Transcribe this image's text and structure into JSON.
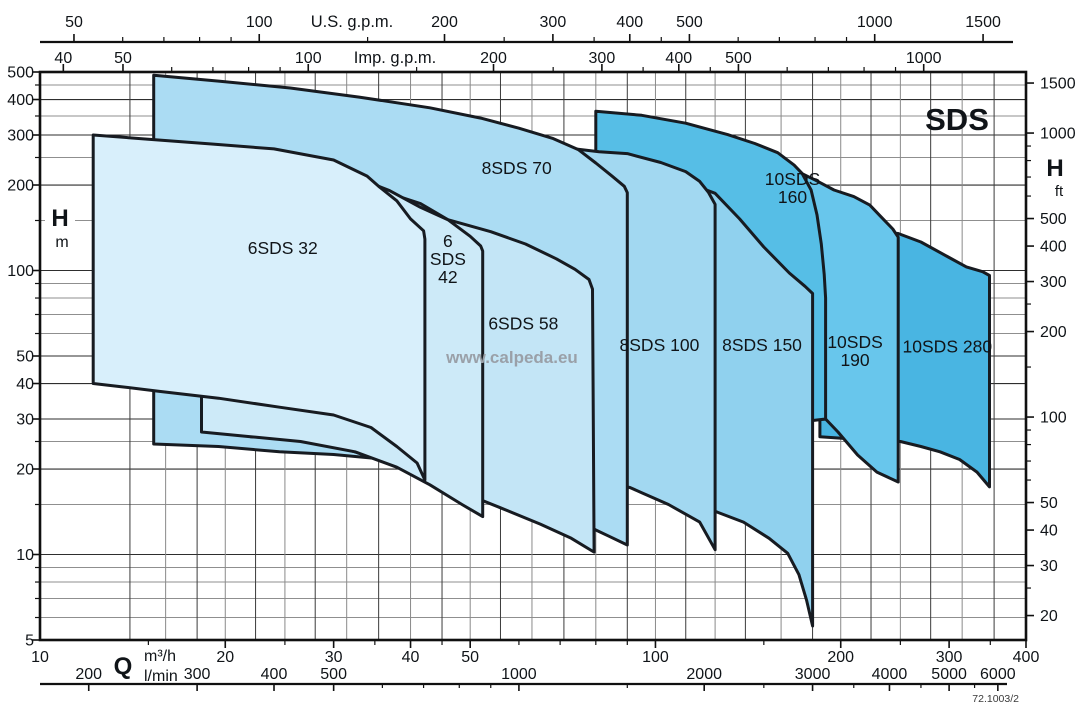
{
  "page": {
    "background": "#ffffff"
  },
  "chart_data": {
    "type": "area",
    "title": "SDS",
    "drawing_number": "72.1003/2",
    "watermark": "www.calpeda.eu",
    "scale": "log-log",
    "xlim_m3h": [
      10,
      400
    ],
    "ylim_m": [
      5,
      500
    ],
    "axes": {
      "top_us_gpm": {
        "title": "U.S. g.p.m.",
        "factor_to_m3h": 0.2271,
        "labels": [
          50,
          100,
          200,
          300,
          400,
          500,
          1000,
          1500
        ],
        "minor": [
          60,
          70,
          80,
          90,
          150,
          250,
          350,
          450,
          600,
          700,
          800,
          900
        ]
      },
      "top_imp_gpm": {
        "title": "Imp. g.p.m.",
        "factor_to_m3h": 0.2728,
        "labels": [
          40,
          50,
          100,
          200,
          300,
          400,
          500,
          1000
        ],
        "minor": [
          60,
          70,
          80,
          90,
          150,
          250,
          350,
          450,
          600,
          700,
          800,
          900
        ]
      },
      "bottom_m3h": {
        "title": "m³/h",
        "factor_to_m3h": 1,
        "labels": [
          10,
          20,
          30,
          40,
          50,
          100,
          200,
          300,
          400
        ],
        "minor": [
          15,
          25,
          35,
          45,
          60,
          70,
          80,
          90,
          150,
          250,
          350
        ]
      },
      "bottom_lmin": {
        "title": "l/min",
        "factor_to_m3h": 0.06,
        "labels": [
          200,
          300,
          400,
          500,
          1000,
          2000,
          3000,
          4000,
          5000,
          6000
        ],
        "minor": [
          600,
          700,
          800,
          900,
          1500,
          2500,
          3500,
          4500,
          5500
        ]
      },
      "left_head_m": {
        "title_main": "H",
        "title_unit": "m",
        "labels": [
          5,
          10,
          20,
          30,
          40,
          50,
          100,
          200,
          300,
          400,
          500
        ],
        "minor": [
          6,
          7,
          8,
          9,
          15,
          25,
          60,
          70,
          80,
          90,
          150,
          250,
          350,
          450
        ]
      },
      "right_head_ft": {
        "title_main": "H",
        "title_unit": "ft",
        "factor_to_m": 0.3048,
        "labels": [
          20,
          30,
          40,
          50,
          100,
          200,
          300,
          400,
          500,
          1000,
          1500
        ],
        "minor": [
          25,
          60,
          70,
          80,
          90,
          150,
          250,
          600,
          700,
          800,
          900
        ]
      },
      "flow_symbol": "Q"
    },
    "grid": {
      "h_major": [
        10,
        20,
        30,
        40,
        50,
        100,
        200,
        300,
        400
      ],
      "h_minor": [
        6,
        7,
        8,
        9,
        15,
        25,
        60,
        70,
        80,
        90,
        150,
        250,
        350,
        450
      ],
      "v_values": [
        14,
        16,
        18,
        20,
        22.4,
        25,
        28,
        31.5,
        35.5,
        40,
        45,
        50,
        56,
        63,
        71,
        80,
        90,
        100,
        112,
        125,
        140,
        160,
        180,
        200,
        224,
        250,
        280,
        315,
        355
      ]
    },
    "regions": [
      {
        "model": "10SDS 280",
        "label_lines": [
          "10SDS 280"
        ],
        "label_pos": [
          298,
          54
        ],
        "fill": "#49b5e2",
        "points": [
          [
            185,
            26
          ],
          [
            185,
            140
          ],
          [
            215,
            138
          ],
          [
            248,
            135
          ],
          [
            270,
            126
          ],
          [
            298,
            112
          ],
          [
            320,
            103
          ],
          [
            340,
            99
          ],
          [
            349,
            96
          ],
          [
            349,
            17.3
          ],
          [
            333,
            19.5
          ],
          [
            312,
            21.6
          ],
          [
            290,
            23
          ],
          [
            270,
            24
          ],
          [
            250,
            25
          ],
          [
            215,
            25.4
          ]
        ]
      },
      {
        "model": "10SDS 190",
        "label_lines": [
          "10SDS",
          "190"
        ],
        "label_pos": [
          211,
          52
        ],
        "fill": "#68c6ec",
        "points": [
          [
            137,
            29
          ],
          [
            137,
            266
          ],
          [
            160,
            241
          ],
          [
            171,
            222
          ],
          [
            182,
            208
          ],
          [
            195,
            192
          ],
          [
            210,
            182
          ],
          [
            223,
            170
          ],
          [
            233,
            154
          ],
          [
            243,
            140
          ],
          [
            248,
            131
          ],
          [
            248,
            18
          ],
          [
            229,
            19.5
          ],
          [
            213,
            22.4
          ],
          [
            198,
            27
          ],
          [
            189,
            30
          ],
          [
            165,
            29.5
          ]
        ]
      },
      {
        "model": "10SDS 160",
        "label_lines": [
          "10SDS",
          "160"
        ],
        "label_pos": [
          167,
          195
        ],
        "fill": "#56bee6",
        "points": [
          [
            80,
            27.5
          ],
          [
            80,
            364
          ],
          [
            95,
            352
          ],
          [
            112,
            330
          ],
          [
            131,
            301
          ],
          [
            145,
            280
          ],
          [
            158,
            260
          ],
          [
            168,
            235
          ],
          [
            173,
            220
          ],
          [
            179,
            192
          ],
          [
            183,
            157
          ],
          [
            186,
            124
          ],
          [
            188,
            97
          ],
          [
            189,
            80
          ],
          [
            189,
            30
          ],
          [
            165,
            29
          ],
          [
            137,
            28.3
          ],
          [
            113,
            28
          ],
          [
            94,
            28
          ]
        ]
      },
      {
        "model": "8SDS 150",
        "label_lines": [
          "8SDS 150"
        ],
        "label_pos": [
          149,
          54.7
        ],
        "fill": "#90d1ee",
        "points": [
          [
            70,
            18.7
          ],
          [
            70,
            245
          ],
          [
            88,
            230
          ],
          [
            102,
            216
          ],
          [
            113,
            203
          ],
          [
            125,
            187
          ],
          [
            137,
            152
          ],
          [
            150,
            121
          ],
          [
            165,
            98
          ],
          [
            175,
            88
          ],
          [
            180,
            83
          ],
          [
            180,
            5.6
          ],
          [
            176,
            6.9
          ],
          [
            171,
            8.5
          ],
          [
            164,
            10.1
          ],
          [
            153,
            11.4
          ],
          [
            139,
            13
          ],
          [
            126,
            14.1
          ],
          [
            110,
            15.5
          ],
          [
            94,
            17
          ],
          [
            81,
            18
          ]
        ]
      },
      {
        "model": "8SDS 100",
        "label_lines": [
          "8SDS 100"
        ],
        "label_pos": [
          101.5,
          54.7
        ],
        "fill": "#a2d8f1",
        "points": [
          [
            45,
            20.7
          ],
          [
            45,
            300
          ],
          [
            56,
            287
          ],
          [
            70,
            272
          ],
          [
            81,
            262
          ],
          [
            90,
            258
          ],
          [
            102,
            240
          ],
          [
            112,
            223
          ],
          [
            118,
            206
          ],
          [
            122,
            188
          ],
          [
            125,
            171
          ],
          [
            125,
            10.4
          ],
          [
            118,
            13
          ],
          [
            105,
            15
          ],
          [
            95,
            16.5
          ],
          [
            91,
            17.2
          ],
          [
            81,
            18.3
          ],
          [
            70,
            19.4
          ],
          [
            56,
            20.3
          ]
        ]
      },
      {
        "model": "8SDS 70",
        "label_lines": [
          "8SDS 70"
        ],
        "label_pos": [
          59.5,
          230
        ],
        "fill": "#abdcf3",
        "points": [
          [
            15.3,
            24.5
          ],
          [
            15.3,
            487
          ],
          [
            19.6,
            464
          ],
          [
            25.5,
            439
          ],
          [
            33,
            408
          ],
          [
            43,
            374
          ],
          [
            52,
            344
          ],
          [
            60,
            317
          ],
          [
            68,
            292
          ],
          [
            75,
            266
          ],
          [
            80,
            239
          ],
          [
            85,
            215
          ],
          [
            89,
            198
          ],
          [
            90,
            188
          ],
          [
            90,
            10.8
          ],
          [
            84,
            11.6
          ],
          [
            80,
            12.2
          ],
          [
            73,
            13.6
          ],
          [
            65,
            15.2
          ],
          [
            56,
            17.3
          ],
          [
            48,
            19.4
          ],
          [
            41.5,
            20.6
          ],
          [
            36,
            21.7
          ],
          [
            30,
            22.5
          ],
          [
            24.5,
            23
          ],
          [
            19.5,
            24
          ]
        ]
      },
      {
        "model": "6SDS 58",
        "label_lines": [
          "6SDS 58"
        ],
        "label_pos": [
          61,
          65
        ],
        "fill": "#c3e5f6",
        "points": [
          [
            22,
            26
          ],
          [
            22,
            230
          ],
          [
            27.5,
            215
          ],
          [
            34.5,
            196
          ],
          [
            41.5,
            172
          ],
          [
            46,
            151
          ],
          [
            54,
            137
          ],
          [
            61.5,
            124
          ],
          [
            69,
            110
          ],
          [
            74,
            101
          ],
          [
            78,
            93
          ],
          [
            79,
            86
          ],
          [
            79.5,
            10.2
          ],
          [
            73,
            11.4
          ],
          [
            65,
            12.8
          ],
          [
            56,
            14.6
          ],
          [
            48,
            16.7
          ],
          [
            41.5,
            19.2
          ],
          [
            36,
            21.5
          ],
          [
            30,
            24.2
          ],
          [
            25.5,
            25.5
          ]
        ]
      },
      {
        "model": "6SDS 42",
        "label_lines": [
          "6",
          "SDS",
          "42"
        ],
        "label_pos": [
          46,
          110
        ],
        "fill": "#cdeaf8",
        "points": [
          [
            18.3,
            27
          ],
          [
            18.3,
            266
          ],
          [
            23,
            254
          ],
          [
            28.5,
            234
          ],
          [
            33,
            211
          ],
          [
            37,
            191
          ],
          [
            41.5,
            167
          ],
          [
            46,
            151
          ],
          [
            50,
            132
          ],
          [
            52,
            122
          ],
          [
            52.4,
            117
          ],
          [
            52.4,
            13.6
          ],
          [
            48.5,
            15
          ],
          [
            43,
            17.6
          ],
          [
            38,
            20.3
          ],
          [
            32.5,
            23
          ],
          [
            26.5,
            25
          ],
          [
            22,
            26
          ]
        ]
      },
      {
        "model": "6SDS 32",
        "label_lines": [
          "6SDS 32"
        ],
        "label_pos": [
          24.8,
          120
        ],
        "fill": "#d8effb",
        "points": [
          [
            12.2,
            40
          ],
          [
            12.2,
            300
          ],
          [
            15,
            290
          ],
          [
            19,
            279
          ],
          [
            24,
            268
          ],
          [
            30,
            245
          ],
          [
            34,
            215
          ],
          [
            35.5,
            198
          ],
          [
            38,
            176
          ],
          [
            40,
            152
          ],
          [
            42,
            138
          ],
          [
            42.2,
            129
          ],
          [
            42.2,
            18.3
          ],
          [
            41,
            21
          ],
          [
            38,
            24
          ],
          [
            34.5,
            28
          ],
          [
            30,
            31
          ],
          [
            24.5,
            33
          ],
          [
            19.5,
            35.5
          ],
          [
            15.7,
            37.5
          ],
          [
            13.5,
            39
          ]
        ]
      }
    ]
  }
}
